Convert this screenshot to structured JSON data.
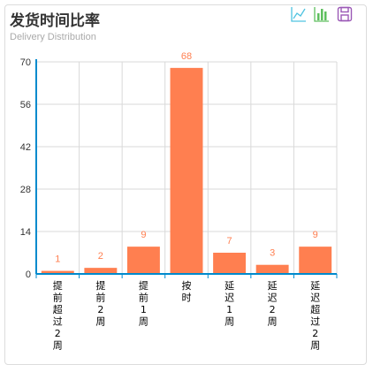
{
  "header": {
    "title": "发货时间比率",
    "subtitle": "Delivery Distribution"
  },
  "toolbox": {
    "line_icon": "line-chart-icon",
    "bar_icon": "bar-chart-icon",
    "save_icon": "save-icon",
    "line_color": "#4fc3e0",
    "bar_color": "#5fbf5f",
    "save_color": "#9b59b6"
  },
  "chart_data": {
    "type": "bar",
    "categories": [
      "提前超过2周",
      "提前2周",
      "提前1周",
      "按时",
      "延迟1周",
      "延迟2周",
      "延迟超过2周"
    ],
    "values": [
      1,
      2,
      9,
      68,
      7,
      3,
      9
    ],
    "yticks": [
      0,
      14,
      28,
      42,
      56,
      70
    ],
    "ylim": [
      0,
      70
    ],
    "grid": true,
    "bar_color": "#ff7f50",
    "axis_color": "#008acd",
    "grid_color": "#d9d9d9"
  }
}
